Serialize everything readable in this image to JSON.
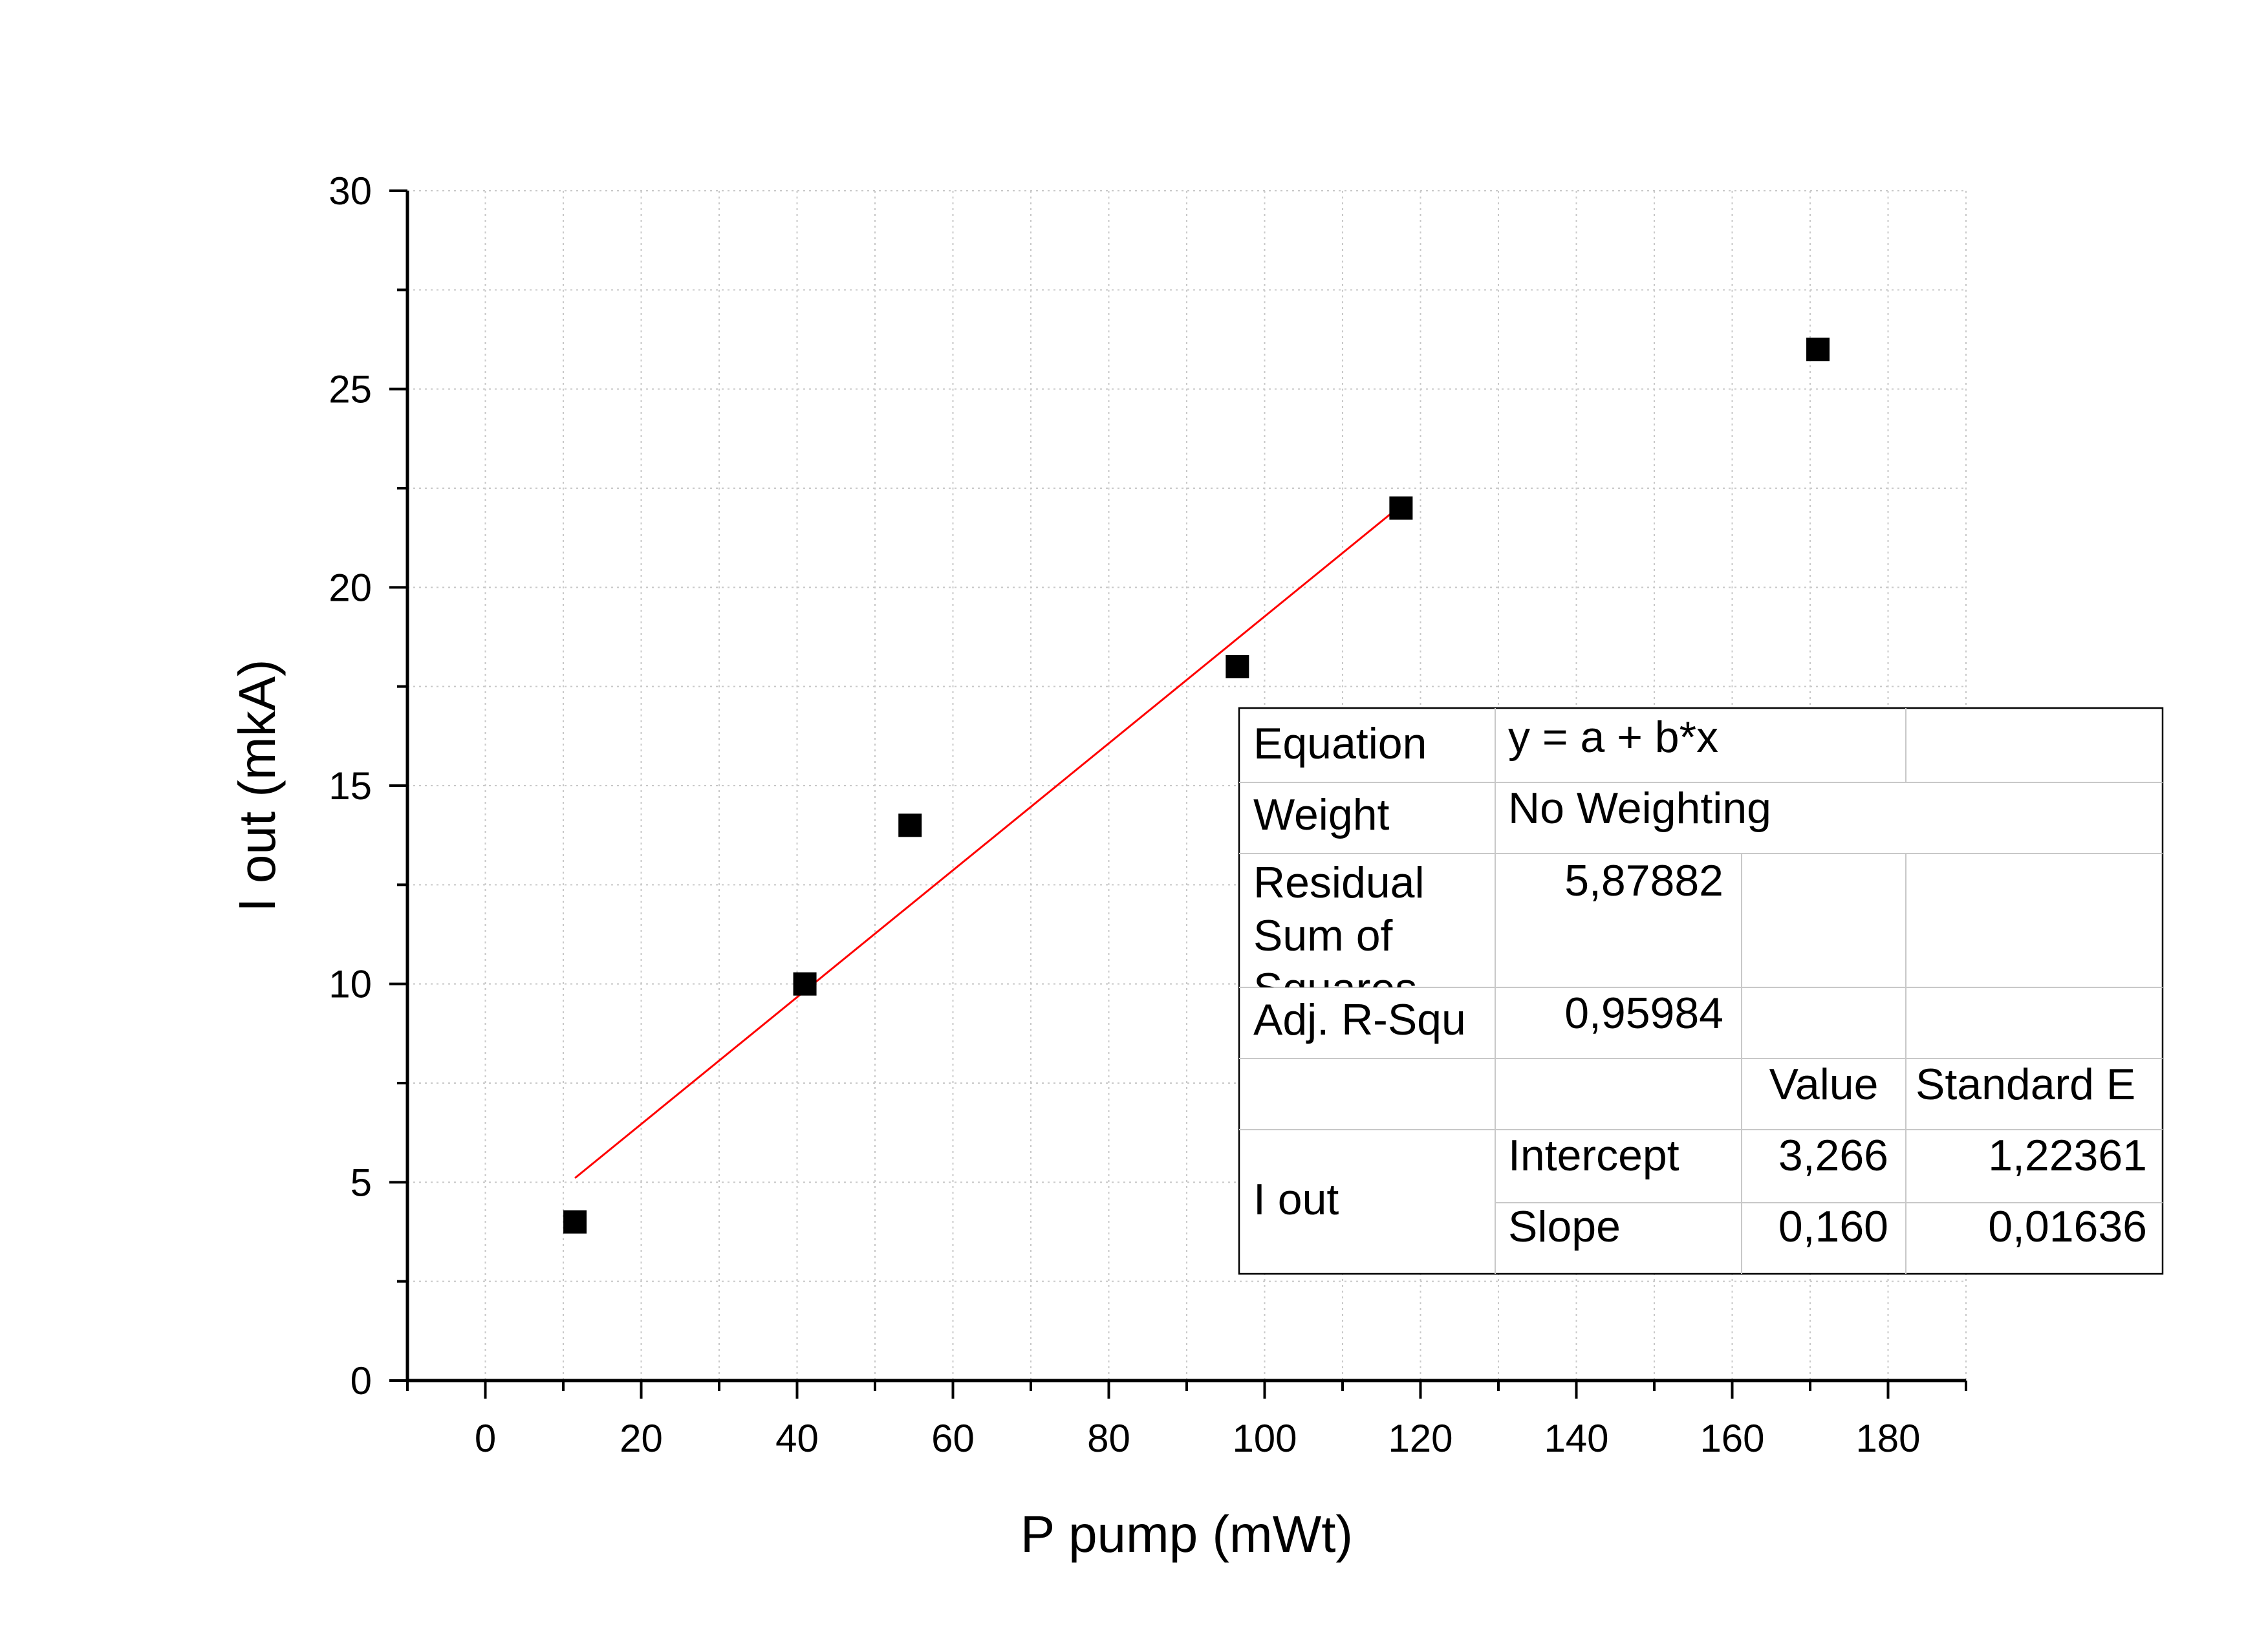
{
  "chart_data": {
    "type": "scatter",
    "xlabel": "P pump (mWt)",
    "ylabel": "I out (mkA)",
    "xlim": [
      -10,
      190
    ],
    "ylim": [
      0,
      30
    ],
    "x_ticks": [
      0,
      20,
      40,
      60,
      80,
      100,
      120,
      140,
      160,
      180
    ],
    "y_ticks": [
      0,
      5,
      10,
      15,
      20,
      25,
      30
    ],
    "grid": true,
    "series": [
      {
        "x": [
          11.5,
          41,
          54.5,
          96.5,
          117.5,
          171
        ],
        "y": [
          4,
          10,
          14,
          18,
          22,
          26
        ],
        "marker": "square",
        "color": "#000000"
      }
    ],
    "fit": {
      "type": "linear",
      "x_range": [
        11.5,
        117.5
      ],
      "intercept": 3.266,
      "slope": 0.16,
      "color": "#ff0000"
    },
    "fit_table": {
      "equation_label": "Equation",
      "equation_value": "y = a + b*x",
      "weight_label": "Weight",
      "weight_value": "No Weighting",
      "rss_label_lines": [
        "Residual",
        "Sum of",
        "Squares"
      ],
      "rss_value": "5,87882",
      "adjr_label": "Adj. R-Squ",
      "adjr_value": "0,95984",
      "col_value": "Value",
      "col_stderr": "Standard E",
      "group_label": "I out",
      "rows": [
        {
          "name": "Intercept",
          "value": "3,266",
          "stderr": "1,22361"
        },
        {
          "name": "Slope",
          "value": "0,160",
          "stderr": "0,01636"
        }
      ]
    }
  }
}
